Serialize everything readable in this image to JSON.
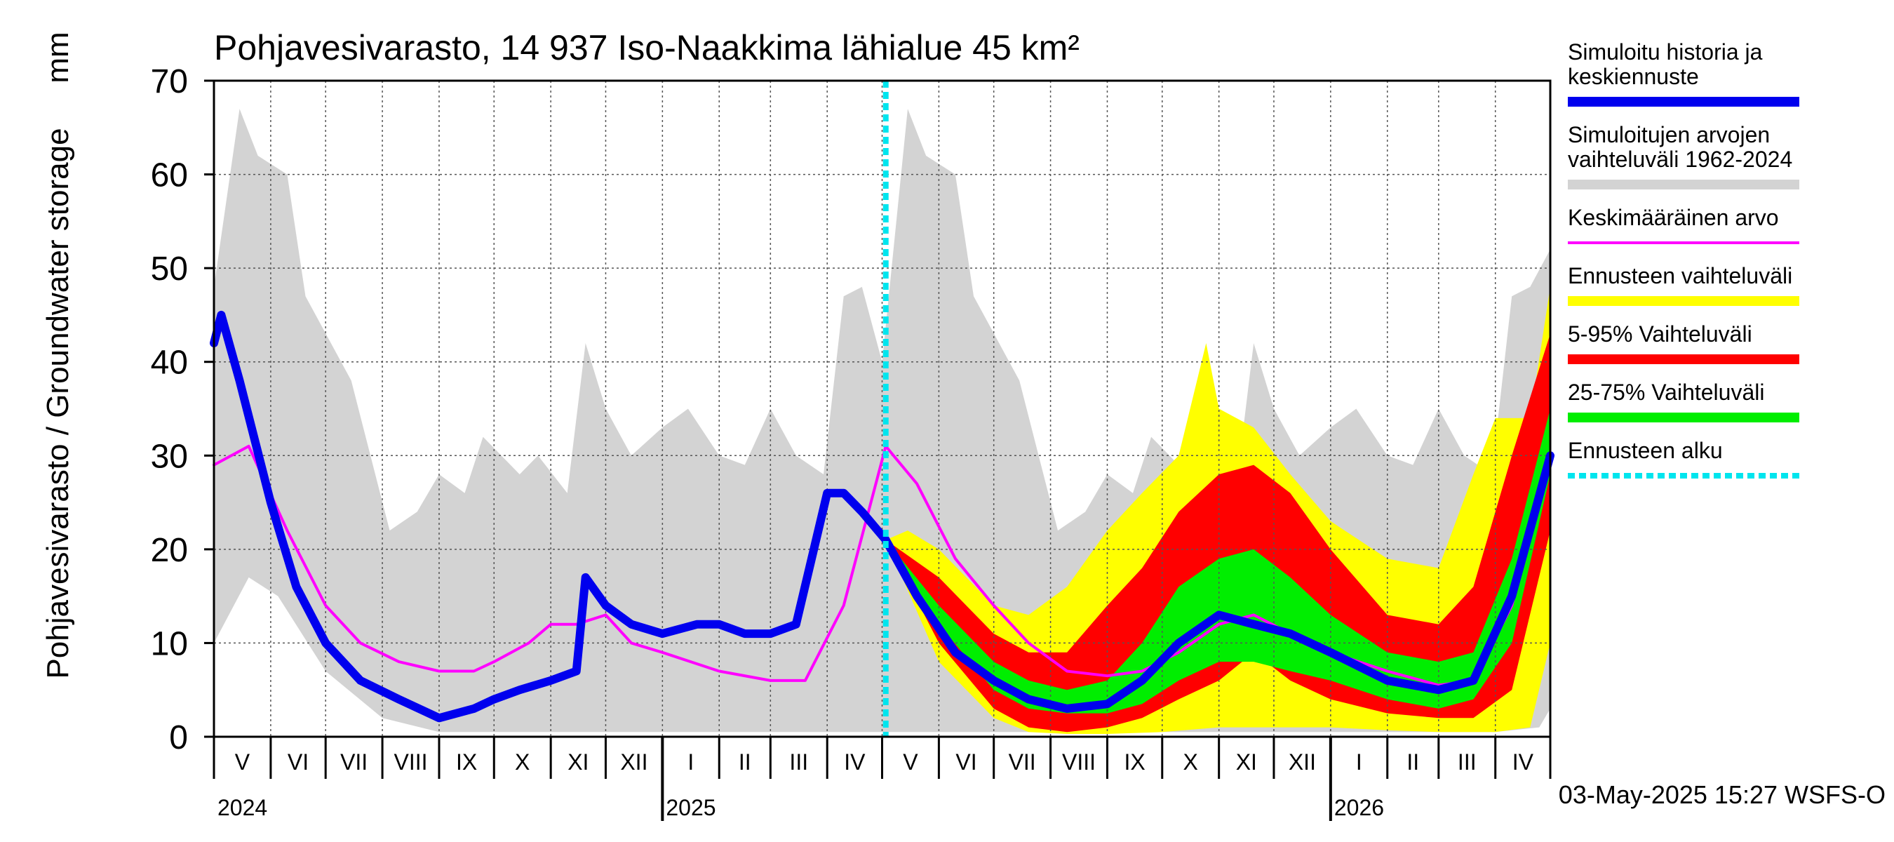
{
  "chart_data": {
    "type": "area",
    "title": "Pohjavesivarasto, 14 937 Iso-Naakkima lähialue 45 km²",
    "ylabel": "Pohjavesivarasto / Groundwater storage",
    "yunit": "mm",
    "ylim": [
      0,
      70
    ],
    "yticks": [
      0,
      10,
      20,
      30,
      40,
      50,
      60,
      70
    ],
    "grid": true,
    "legend_position": "right",
    "footer": "03-May-2025 15:27 WSFS-O",
    "months": [
      "V",
      "VI",
      "VII",
      "VIII",
      "IX",
      "X",
      "XI",
      "XII",
      "I",
      "II",
      "III",
      "IV",
      "V",
      "VI",
      "VII",
      "VIII",
      "IX",
      "X",
      "XI",
      "XII",
      "I",
      "II",
      "III",
      "IV"
    ],
    "years": [
      "2024",
      "2025",
      "2026"
    ],
    "x_start": "2024-05-01",
    "x_end": "2026-05-01",
    "forecast_start": "2025-05-03",
    "colors": {
      "history": "#0000ee",
      "range": "#d3d3d3",
      "mean": "#ff00ff",
      "forecast_range": "#ffff00",
      "p5_95": "#ff0000",
      "p25_75": "#00ee00",
      "forecast_start": "#00e5ee"
    },
    "legend": [
      {
        "key": "history",
        "label": "Simuloitu historia ja keskiennuste",
        "lines": [
          "Simuloitu historia ja",
          "keskiennuste"
        ],
        "color": "#0000ee",
        "style": "thick"
      },
      {
        "key": "range",
        "label": "Simuloitujen arvojen vaihteluväli 1962-2024",
        "lines": [
          "Simuloitujen arvojen",
          "vaihteluväli 1962-2024"
        ],
        "color": "#d3d3d3",
        "style": "band"
      },
      {
        "key": "mean",
        "label": "Keskimääräinen arvo",
        "lines": [
          "Keskimääräinen arvo"
        ],
        "color": "#ff00ff",
        "style": "thin"
      },
      {
        "key": "forecast_range",
        "label": "Ennusteen vaihteluväli",
        "lines": [
          "Ennusteen vaihteluväli"
        ],
        "color": "#ffff00",
        "style": "band"
      },
      {
        "key": "p5_95",
        "label": "5-95% Vaihteluväli",
        "lines": [
          "5-95% Vaihteluväli"
        ],
        "color": "#ff0000",
        "style": "band"
      },
      {
        "key": "p25_75",
        "label": "25-75% Vaihteluväli",
        "lines": [
          "25-75% Vaihteluväli"
        ],
        "color": "#00ee00",
        "style": "band"
      },
      {
        "key": "forecast_start",
        "label": "Ennusteen alku",
        "lines": [
          "Ennusteen alku"
        ],
        "color": "#00e5ee",
        "style": "dotted"
      }
    ],
    "series": {
      "range_upper": {
        "x": [
          "2024-05-01",
          "2024-05-15",
          "2024-05-25",
          "2024-06-10",
          "2024-06-20",
          "2024-07-15",
          "2024-08-05",
          "2024-08-20",
          "2024-09-01",
          "2024-09-15",
          "2024-09-25",
          "2024-10-15",
          "2024-10-25",
          "2024-11-10",
          "2024-11-20",
          "2024-12-01",
          "2024-12-15",
          "2025-01-01",
          "2025-01-15",
          "2025-02-01",
          "2025-02-15",
          "2025-03-01",
          "2025-03-15",
          "2025-03-30",
          "2025-04-10",
          "2025-04-20",
          "2025-05-01",
          "2025-05-15",
          "2025-05-25",
          "2025-06-10",
          "2025-06-20",
          "2025-07-15",
          "2025-08-05",
          "2025-08-20",
          "2025-09-01",
          "2025-09-15",
          "2025-09-25",
          "2025-10-15",
          "2025-10-25",
          "2025-11-10",
          "2025-11-20",
          "2025-12-01",
          "2025-12-15",
          "2026-01-01",
          "2026-01-15",
          "2026-02-01",
          "2026-02-15",
          "2026-03-01",
          "2026-03-15",
          "2026-03-30",
          "2026-04-10",
          "2026-04-20",
          "2026-05-01"
        ],
        "y": [
          48,
          67,
          62,
          60,
          47,
          38,
          22,
          24,
          28,
          26,
          32,
          28,
          30,
          26,
          42,
          35,
          30,
          33,
          35,
          30,
          29,
          35,
          30,
          28,
          47,
          48,
          40,
          67,
          62,
          60,
          47,
          38,
          22,
          24,
          28,
          26,
          32,
          28,
          30,
          26,
          42,
          35,
          30,
          33,
          35,
          30,
          29,
          35,
          30,
          28,
          47,
          48,
          52
        ]
      },
      "range_lower": {
        "x": [
          "2024-05-01",
          "2024-05-20",
          "2024-06-05",
          "2024-07-01",
          "2024-08-01",
          "2024-09-01",
          "2024-10-01",
          "2024-11-01",
          "2024-12-01",
          "2025-01-01",
          "2025-02-01",
          "2025-03-01",
          "2025-04-01",
          "2025-04-25",
          "2025-05-02",
          "2025-06-01",
          "2025-07-01",
          "2025-08-01",
          "2025-09-01",
          "2025-10-01",
          "2025-11-01",
          "2025-12-01",
          "2026-01-01",
          "2026-02-01",
          "2026-03-01",
          "2026-04-01",
          "2026-04-25",
          "2026-05-01"
        ],
        "y": [
          10,
          17,
          15,
          7,
          2,
          0.5,
          0.5,
          0.5,
          0.5,
          0.5,
          0.5,
          0.5,
          0.5,
          0.5,
          0.5,
          0.5,
          0.5,
          0.5,
          0.5,
          0.5,
          0.5,
          0.5,
          0.5,
          0.5,
          0.5,
          0.5,
          1,
          3
        ]
      },
      "history": {
        "x": [
          "2024-05-01",
          "2024-05-05",
          "2024-05-15",
          "2024-06-01",
          "2024-06-15",
          "2024-07-01",
          "2024-07-20",
          "2024-08-10",
          "2024-09-01",
          "2024-09-20",
          "2024-10-01",
          "2024-10-15",
          "2024-11-01",
          "2024-11-15",
          "2024-11-20",
          "2024-12-01",
          "2024-12-15",
          "2025-01-01",
          "2025-01-20",
          "2025-02-01",
          "2025-02-15",
          "2025-03-01",
          "2025-03-15",
          "2025-04-01",
          "2025-04-10",
          "2025-04-20",
          "2025-05-03"
        ],
        "y": [
          42,
          45,
          38,
          25,
          16,
          10,
          6,
          4,
          2,
          3,
          4,
          5,
          6,
          7,
          17,
          14,
          12,
          11,
          12,
          12,
          11,
          11,
          12,
          26,
          26,
          24,
          21
        ]
      },
      "median": {
        "x": [
          "2025-05-03",
          "2025-05-20",
          "2025-06-10",
          "2025-07-01",
          "2025-07-20",
          "2025-08-10",
          "2025-09-01",
          "2025-09-20",
          "2025-10-10",
          "2025-11-01",
          "2025-11-20",
          "2025-12-10",
          "2026-01-01",
          "2026-02-01",
          "2026-03-01",
          "2026-03-20",
          "2026-04-10",
          "2026-05-01"
        ],
        "y": [
          21,
          15,
          9,
          6,
          4,
          3,
          3.5,
          6,
          10,
          13,
          12,
          11,
          9,
          6,
          5,
          6,
          15,
          30
        ]
      },
      "mean": {
        "x": [
          "2024-05-01",
          "2024-05-20",
          "2024-06-10",
          "2024-07-01",
          "2024-07-20",
          "2024-08-10",
          "2024-09-01",
          "2024-09-20",
          "2024-10-01",
          "2024-10-20",
          "2024-11-01",
          "2024-11-15",
          "2024-12-01",
          "2024-12-15",
          "2025-01-01",
          "2025-02-01",
          "2025-03-01",
          "2025-03-20",
          "2025-04-10",
          "2025-05-03",
          "2025-05-20",
          "2025-06-10",
          "2025-07-01",
          "2025-07-20",
          "2025-08-10",
          "2025-09-01",
          "2025-09-20",
          "2025-10-10",
          "2025-11-01",
          "2025-11-20",
          "2025-12-10",
          "2026-01-01",
          "2026-02-01",
          "2026-03-01",
          "2026-03-20",
          "2026-04-10",
          "2026-05-01"
        ],
        "y": [
          29,
          31,
          22,
          14,
          10,
          8,
          7,
          7,
          8,
          10,
          12,
          12,
          13,
          10,
          9,
          7,
          6,
          6,
          14,
          31,
          27,
          19,
          14,
          10,
          7,
          6.5,
          7,
          9,
          12,
          13,
          11,
          9,
          7,
          5.5,
          6,
          14,
          30
        ]
      },
      "p25": {
        "x": [
          "2025-05-03",
          "2025-06-01",
          "2025-07-01",
          "2025-07-20",
          "2025-08-10",
          "2025-09-01",
          "2025-09-20",
          "2025-10-10",
          "2025-11-01",
          "2025-11-20",
          "2025-12-10",
          "2026-01-01",
          "2026-02-01",
          "2026-03-01",
          "2026-03-20",
          "2026-04-10",
          "2026-05-01"
        ],
        "y": [
          21,
          12,
          5,
          3,
          2.5,
          2.5,
          3.5,
          6,
          8,
          8,
          7,
          6,
          4,
          3,
          4,
          10,
          28
        ]
      },
      "p75": {
        "x": [
          "2025-05-03",
          "2025-06-01",
          "2025-07-01",
          "2025-07-20",
          "2025-08-10",
          "2025-09-01",
          "2025-09-20",
          "2025-10-10",
          "2025-11-01",
          "2025-11-20",
          "2025-12-10",
          "2026-01-01",
          "2026-02-01",
          "2026-03-01",
          "2026-03-20",
          "2026-04-10",
          "2026-05-01"
        ],
        "y": [
          21,
          14,
          8,
          6,
          5,
          6,
          10,
          16,
          19,
          20,
          17,
          13,
          9,
          8,
          9,
          19,
          35
        ]
      },
      "p5": {
        "x": [
          "2025-05-03",
          "2025-06-01",
          "2025-07-01",
          "2025-07-20",
          "2025-08-10",
          "2025-09-01",
          "2025-09-20",
          "2025-10-10",
          "2025-11-01",
          "2025-11-20",
          "2025-12-10",
          "2026-01-01",
          "2026-02-01",
          "2026-03-01",
          "2026-03-20",
          "2026-04-10",
          "2026-05-01"
        ],
        "y": [
          21,
          10,
          3,
          1,
          0.5,
          1,
          2,
          4,
          6,
          9,
          6,
          4,
          2.5,
          2,
          2,
          5,
          22
        ]
      },
      "p95": {
        "x": [
          "2025-05-03",
          "2025-06-01",
          "2025-07-01",
          "2025-07-20",
          "2025-08-10",
          "2025-09-01",
          "2025-09-20",
          "2025-10-10",
          "2025-11-01",
          "2025-11-20",
          "2025-12-10",
          "2026-01-01",
          "2026-02-01",
          "2026-03-01",
          "2026-03-20",
          "2026-04-10",
          "2026-05-01"
        ],
        "y": [
          21,
          17,
          11,
          9,
          9,
          14,
          18,
          24,
          28,
          29,
          26,
          20,
          13,
          12,
          16,
          30,
          43
        ]
      },
      "fmin": {
        "x": [
          "2025-05-03",
          "2025-06-01",
          "2025-07-01",
          "2025-07-20",
          "2025-08-10",
          "2025-09-01",
          "2025-10-01",
          "2025-11-01",
          "2025-12-01",
          "2026-01-01",
          "2026-02-01",
          "2026-03-01",
          "2026-04-01",
          "2026-04-20",
          "2026-05-01"
        ],
        "y": [
          21,
          8,
          2,
          0.5,
          0.3,
          0.3,
          0.5,
          1,
          1,
          1,
          0.7,
          0.5,
          0.5,
          1,
          10
        ]
      },
      "fmax": {
        "x": [
          "2025-05-03",
          "2025-05-15",
          "2025-06-01",
          "2025-07-01",
          "2025-07-20",
          "2025-08-10",
          "2025-09-01",
          "2025-09-20",
          "2025-10-10",
          "2025-10-25",
          "2025-11-01",
          "2025-11-20",
          "2025-12-10",
          "2026-01-01",
          "2026-02-01",
          "2026-03-01",
          "2026-03-20",
          "2026-04-01",
          "2026-04-20",
          "2026-05-01"
        ],
        "y": [
          21,
          22,
          20,
          14,
          13,
          16,
          22,
          26,
          30,
          42,
          35,
          33,
          28,
          23,
          19,
          18,
          28,
          34,
          34,
          48
        ]
      }
    }
  }
}
